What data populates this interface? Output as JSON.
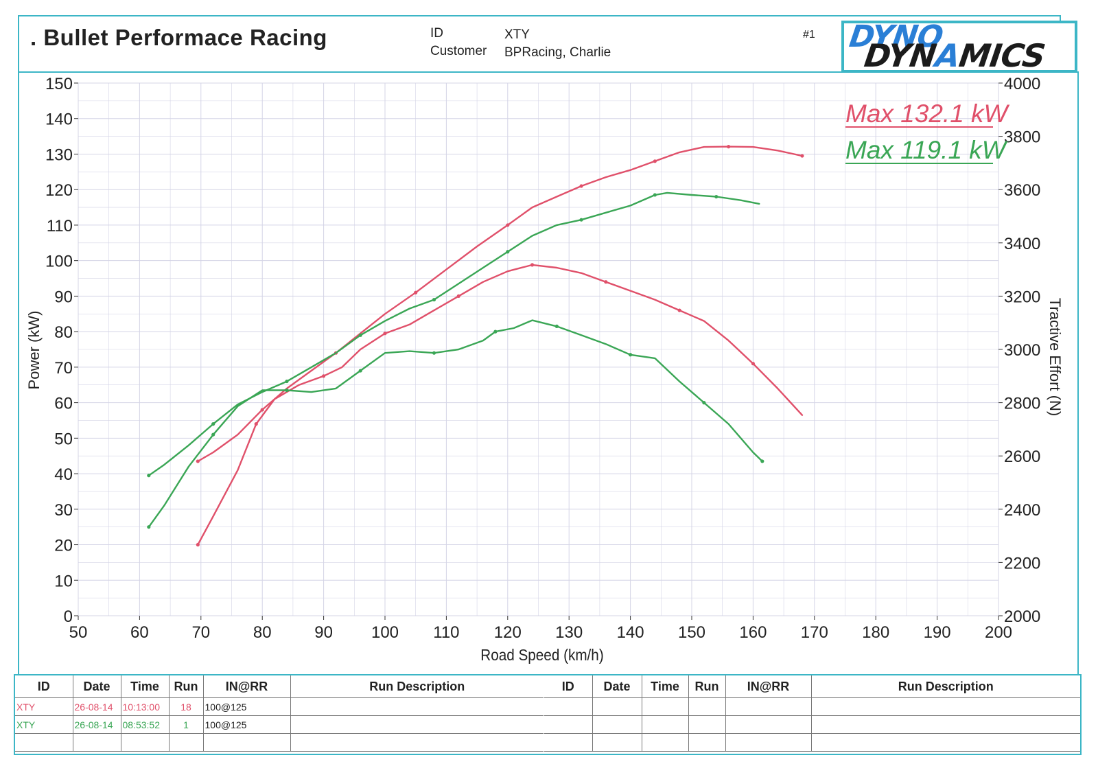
{
  "header": {
    "title": ". Bullet Performace Racing",
    "id_label": "ID",
    "id_value": "XTY",
    "customer_label": "Customer",
    "customer_value": "BPRacing, Charlie",
    "page_tag": "#1",
    "logo_top": "DYNO",
    "logo_bottom_a": "DYN",
    "logo_bottom_b": "A",
    "logo_bottom_c": "MICS"
  },
  "colors": {
    "run_red": "#e0506a",
    "run_green": "#3aa655",
    "frame": "#3cb6c6",
    "grid": "#d4d4e6"
  },
  "annotations": [
    {
      "text": "Max 132.1 kW",
      "series": "red"
    },
    {
      "text": "Max 119.1 kW",
      "series": "green"
    }
  ],
  "chart_data": {
    "type": "line",
    "xlabel": "Road Speed (km/h)",
    "ylabel": "Power (kW)",
    "y2label": "Tractive Effort (N)",
    "xlim": [
      50,
      200
    ],
    "ylim": [
      0,
      150
    ],
    "y2lim": [
      2000,
      4000
    ],
    "grid": true,
    "x_ticks": [
      "50",
      "60",
      "70",
      "80",
      "90",
      "100",
      "110",
      "120",
      "130",
      "140",
      "150",
      "160",
      "170",
      "180",
      "190",
      "200"
    ],
    "y_ticks": [
      "0",
      "10",
      "20",
      "30",
      "40",
      "50",
      "60",
      "70",
      "80",
      "90",
      "100",
      "110",
      "120",
      "130",
      "140",
      "150"
    ],
    "y2_ticks": [
      "2000",
      "2200",
      "2400",
      "2600",
      "2800",
      "3000",
      "3200",
      "3400",
      "3600",
      "3800",
      "4000"
    ],
    "series": [
      {
        "color": "red",
        "kind": "power",
        "axis": "left",
        "points": [
          [
            69.5,
            43.5
          ],
          [
            72,
            46
          ],
          [
            76,
            51
          ],
          [
            80,
            58
          ],
          [
            84,
            64
          ],
          [
            88,
            69
          ],
          [
            92,
            74
          ],
          [
            96,
            79.5
          ],
          [
            100,
            85
          ],
          [
            105,
            91
          ],
          [
            110,
            97.5
          ],
          [
            115,
            104
          ],
          [
            120,
            110
          ],
          [
            124,
            115
          ],
          [
            128,
            118
          ],
          [
            132,
            121
          ],
          [
            136,
            123.5
          ],
          [
            140,
            125.5
          ],
          [
            144,
            128
          ],
          [
            148,
            130.5
          ],
          [
            152,
            132
          ],
          [
            156,
            132.1
          ],
          [
            160,
            132
          ],
          [
            164,
            131
          ],
          [
            168,
            129.5
          ]
        ]
      },
      {
        "color": "red",
        "kind": "tractive",
        "axis": "right",
        "points": [
          [
            69.5,
            20
          ],
          [
            72,
            28
          ],
          [
            76,
            41
          ],
          [
            79,
            54
          ],
          [
            82,
            61
          ],
          [
            86,
            65
          ],
          [
            90,
            67.5
          ],
          [
            93,
            70
          ],
          [
            96,
            75
          ],
          [
            100,
            79.5
          ],
          [
            104,
            82
          ],
          [
            108,
            86
          ],
          [
            112,
            90
          ],
          [
            116,
            94
          ],
          [
            120,
            97
          ],
          [
            124,
            98.8
          ],
          [
            128,
            98
          ],
          [
            132,
            96.5
          ],
          [
            136,
            94
          ],
          [
            140,
            91.5
          ],
          [
            144,
            89
          ],
          [
            148,
            86
          ],
          [
            152,
            83
          ],
          [
            156,
            77.5
          ],
          [
            160,
            71
          ],
          [
            164,
            64
          ],
          [
            168,
            56.5
          ]
        ]
      },
      {
        "color": "green",
        "kind": "power",
        "axis": "left",
        "points": [
          [
            61.5,
            39.5
          ],
          [
            64,
            42.5
          ],
          [
            68,
            48
          ],
          [
            72,
            54
          ],
          [
            76,
            59.5
          ],
          [
            80,
            63
          ],
          [
            84,
            66
          ],
          [
            88,
            70
          ],
          [
            92,
            74
          ],
          [
            96,
            79
          ],
          [
            100,
            83
          ],
          [
            104,
            86.5
          ],
          [
            108,
            89
          ],
          [
            112,
            93.5
          ],
          [
            116,
            98
          ],
          [
            120,
            102.5
          ],
          [
            124,
            107
          ],
          [
            128,
            110
          ],
          [
            132,
            111.5
          ],
          [
            136,
            113.5
          ],
          [
            140,
            115.5
          ],
          [
            144,
            118.5
          ],
          [
            146,
            119.1
          ],
          [
            150,
            118.5
          ],
          [
            154,
            118
          ],
          [
            158,
            117
          ],
          [
            161,
            116
          ]
        ]
      },
      {
        "color": "green",
        "kind": "tractive",
        "axis": "right",
        "points": [
          [
            61.5,
            25
          ],
          [
            64,
            31
          ],
          [
            68,
            42
          ],
          [
            72,
            51
          ],
          [
            76,
            59
          ],
          [
            80,
            63.5
          ],
          [
            84,
            63.5
          ],
          [
            88,
            63
          ],
          [
            92,
            64
          ],
          [
            96,
            69
          ],
          [
            100,
            74
          ],
          [
            104,
            74.5
          ],
          [
            108,
            74
          ],
          [
            112,
            75
          ],
          [
            116,
            77.5
          ],
          [
            118,
            80
          ],
          [
            121,
            81
          ],
          [
            124,
            83.2
          ],
          [
            128,
            81.5
          ],
          [
            132,
            79
          ],
          [
            136,
            76.5
          ],
          [
            140,
            73.5
          ],
          [
            144,
            72.5
          ],
          [
            148,
            66
          ],
          [
            152,
            60
          ],
          [
            156,
            54
          ],
          [
            160,
            46
          ],
          [
            161.5,
            43.5
          ]
        ]
      }
    ]
  },
  "run_table": {
    "left_headers": [
      "ID",
      "Date",
      "Time",
      "Run",
      "IN@RR",
      "Run Description"
    ],
    "right_headers": [
      "ID",
      "Date",
      "Time",
      "Run",
      "IN@RR",
      "Run Description"
    ],
    "rows": [
      {
        "id": "XTY",
        "date": "26-08-14",
        "time": "10:13:00",
        "run": "18",
        "inrr": "100@125",
        "desc": "",
        "color": "red"
      },
      {
        "id": "XTY",
        "date": "26-08-14",
        "time": "08:53:52",
        "run": "1",
        "inrr": "100@125",
        "desc": "",
        "color": "green"
      }
    ]
  }
}
